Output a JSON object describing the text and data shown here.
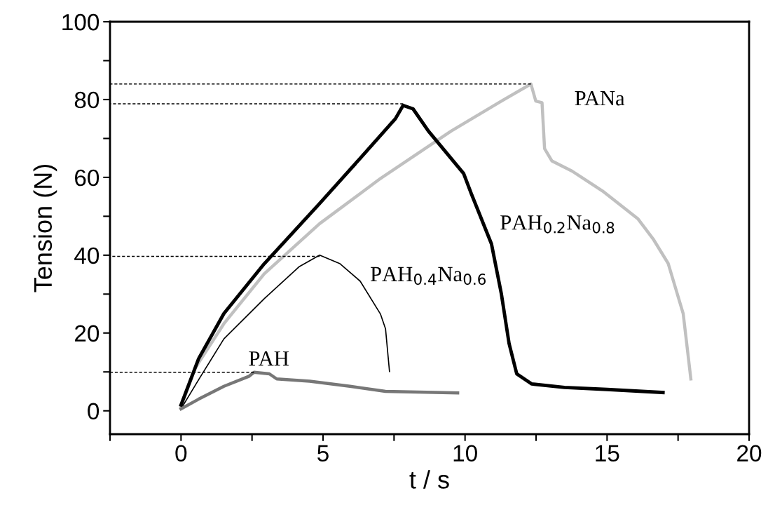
{
  "chart_data": {
    "type": "line",
    "xlabel": "t / s",
    "ylabel": "Tension (N)",
    "xlim": [
      -2.5,
      20
    ],
    "ylim": [
      -6,
      100
    ],
    "xticks": [
      {
        "value": -2.5,
        "label": null
      },
      0,
      {
        "value": 2.5,
        "label": null
      },
      5,
      {
        "value": 7.5,
        "label": null
      },
      10,
      {
        "value": 12.5,
        "label": null
      },
      15,
      {
        "value": 17.5,
        "label": null
      },
      20
    ],
    "yticks": [
      0,
      {
        "value": 10,
        "label": null
      },
      20,
      {
        "value": 30,
        "label": null
      },
      40,
      {
        "value": 50,
        "label": null
      },
      60,
      {
        "value": 70,
        "label": null
      },
      80,
      {
        "value": 90,
        "label": null
      },
      100
    ],
    "grid": false,
    "legend": false,
    "marker": "none",
    "series": [
      {
        "color": "#000000",
        "line_style": "dashed",
        "x": [
          -2.5,
          12.32
        ],
        "values": [
          84,
          84
        ]
      },
      {
        "color": "#000000",
        "line_style": "dashed",
        "x": [
          -2.5,
          7.82
        ],
        "values": [
          78.9,
          78.9
        ]
      },
      {
        "color": "#000000",
        "line_style": "dashed",
        "x": [
          -2.5,
          4.88
        ],
        "values": [
          39.7,
          39.7
        ]
      },
      {
        "color": "#000000",
        "line_style": "dashed",
        "x": [
          -2.5,
          2.57
        ],
        "values": [
          9.9,
          9.9
        ]
      },
      {
        "name": "PANa",
        "color": "#c0c0c0",
        "line_style": "solid",
        "x": [
          0,
          0.5,
          1.51,
          2.93,
          4.88,
          7.02,
          9.51,
          11.28,
          12.32,
          12.49,
          12.71,
          12.8,
          13.06,
          13.77,
          14.84,
          16.08,
          16.62,
          17.15,
          17.68,
          17.95
        ],
        "values": [
          1,
          11,
          22.4,
          35.2,
          48.1,
          59.7,
          71.9,
          79.6,
          84,
          79.6,
          79.2,
          67.4,
          64.2,
          61.6,
          56.5,
          49.4,
          44.2,
          37.9,
          25,
          8.2
        ]
      },
      {
        "name": "PAH$_{0.2}$Na$_{0.8}$",
        "color": "#000000",
        "line_style": "solid",
        "x": [
          0,
          0.62,
          1.51,
          2.93,
          4.88,
          6.31,
          7.55,
          7.82,
          8.17,
          8.71,
          9.95,
          10.22,
          10.93,
          11.28,
          11.55,
          11.82,
          12.35,
          13.5,
          15,
          16.97
        ],
        "values": [
          1.5,
          13.4,
          25,
          37.8,
          53.3,
          64.9,
          75.1,
          78.5,
          77.6,
          71.9,
          61,
          55.8,
          42.9,
          30,
          17.3,
          9.5,
          6.9,
          6,
          5.5,
          4.7
        ]
      },
      {
        "name": "PAH$_{0.4}$Na$_{0.6}$",
        "color": "#000000",
        "line_style": "solid",
        "x": [
          0,
          0.62,
          1.51,
          2.93,
          4.17,
          4.88,
          5.6,
          6.31,
          7.02,
          7.2,
          7.34
        ],
        "values": [
          0.5,
          8,
          18.5,
          28.8,
          37.1,
          40,
          37.8,
          33.3,
          24.9,
          21.1,
          10.1
        ]
      },
      {
        "name": "PAH",
        "color": "#777777",
        "line_style": "solid",
        "x": [
          0,
          0.62,
          1.51,
          2.4,
          2.57,
          3.11,
          3.37,
          4.53,
          5.95,
          7.2,
          9.74
        ],
        "values": [
          0.5,
          3,
          6.3,
          8.9,
          9.9,
          9.5,
          8.2,
          7.6,
          6.3,
          5,
          4.6
        ]
      }
    ]
  }
}
